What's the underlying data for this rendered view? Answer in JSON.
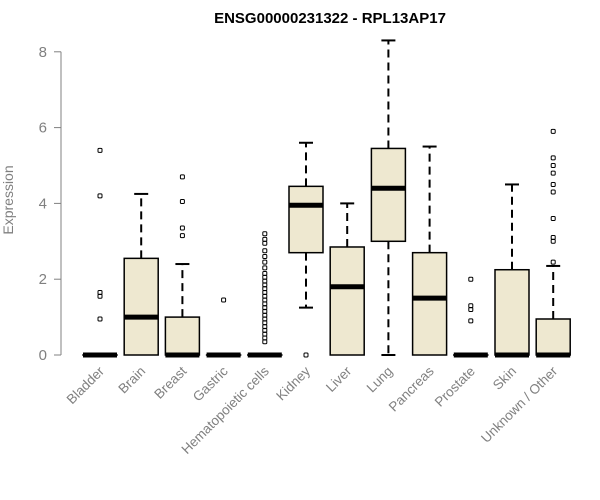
{
  "chart_data": {
    "type": "boxplot",
    "title": "ENSG00000231322 - RPL13AP17",
    "xlabel": "",
    "ylabel": "Expression",
    "ylim": [
      0,
      8
    ],
    "yticks": [
      0,
      2,
      4,
      6,
      8
    ],
    "grid": false,
    "box_fill": "#EEE8D0",
    "categories": [
      "Bladder",
      "Brain",
      "Breast",
      "Gastric",
      "Hematopoietic cells",
      "Kidney",
      "Liver",
      "Lung",
      "Pancreas",
      "Prostate",
      "Skin",
      "Unknown / Other"
    ],
    "boxes": [
      {
        "min": 0,
        "q1": 0,
        "median": 0,
        "q3": 0,
        "max": 0,
        "outliers": [
          0.95,
          1.55,
          1.65,
          4.2,
          5.4
        ]
      },
      {
        "min": 0,
        "q1": 0,
        "median": 1.0,
        "q3": 2.55,
        "max": 4.25,
        "outliers": []
      },
      {
        "min": 0,
        "q1": 0,
        "median": 0,
        "q3": 1.0,
        "max": 2.4,
        "outliers": [
          3.15,
          3.35,
          4.05,
          4.7
        ]
      },
      {
        "min": 0,
        "q1": 0,
        "median": 0,
        "q3": 0,
        "max": 0,
        "outliers": [
          1.45
        ]
      },
      {
        "min": 0,
        "q1": 0,
        "median": 0,
        "q3": 0,
        "max": 0,
        "outliers": [
          0.35,
          0.45,
          0.55,
          0.65,
          0.75,
          0.85,
          0.95,
          1.05,
          1.15,
          1.25,
          1.35,
          1.45,
          1.55,
          1.65,
          1.75,
          1.85,
          1.95,
          2.05,
          2.15,
          2.3,
          2.45,
          2.6,
          2.75,
          2.95,
          3.05,
          3.2
        ]
      },
      {
        "min": 1.25,
        "q1": 2.7,
        "median": 3.95,
        "q3": 4.45,
        "max": 5.6,
        "outliers": [
          0.0
        ]
      },
      {
        "min": 0,
        "q1": 0,
        "median": 1.8,
        "q3": 2.85,
        "max": 4.0,
        "outliers": []
      },
      {
        "min": 0,
        "q1": 3.0,
        "median": 4.4,
        "q3": 5.45,
        "max": 8.3,
        "outliers": []
      },
      {
        "min": 0,
        "q1": 0,
        "median": 1.5,
        "q3": 2.7,
        "max": 5.5,
        "outliers": []
      },
      {
        "min": 0,
        "q1": 0,
        "median": 0,
        "q3": 0,
        "max": 0,
        "outliers": [
          0.9,
          1.2,
          1.3,
          2.0
        ]
      },
      {
        "min": 0,
        "q1": 0,
        "median": 0,
        "q3": 2.25,
        "max": 4.5,
        "outliers": []
      },
      {
        "min": 0,
        "q1": 0,
        "median": 0,
        "q3": 0.95,
        "max": 2.35,
        "outliers": [
          2.45,
          3.0,
          3.1,
          3.6,
          4.3,
          4.5,
          4.8,
          5.0,
          5.2,
          5.9
        ]
      }
    ]
  }
}
